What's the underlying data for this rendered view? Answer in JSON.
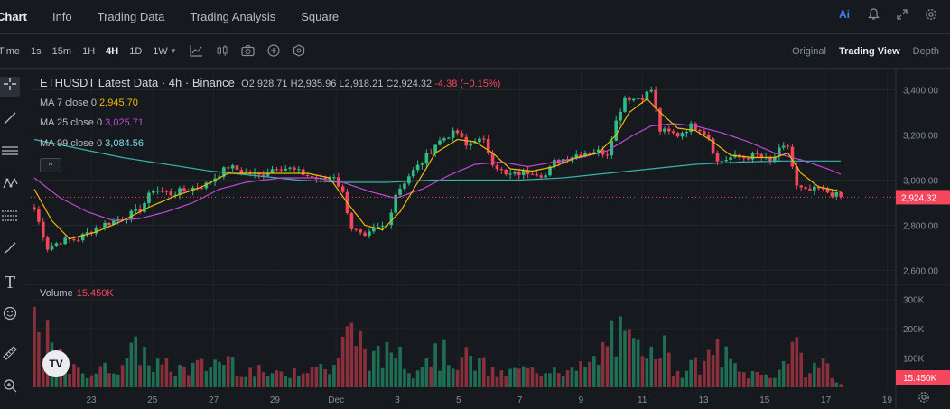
{
  "nav": {
    "tabs": [
      "Chart",
      "Info",
      "Trading Data",
      "Trading Analysis",
      "Square"
    ],
    "active_tab": "Chart",
    "icons": [
      "ai-icon",
      "bell-icon",
      "expand-icon",
      "settings-icon"
    ],
    "ai_label": "Ai"
  },
  "toolbar": {
    "time_label": "Time",
    "intervals": [
      "1s",
      "15m",
      "1H",
      "4H",
      "1D",
      "1W"
    ],
    "active_interval": "4H",
    "tool_icons": [
      "chevron-down-icon",
      "indicator-icon",
      "candle-type-icon",
      "camera-icon",
      "plus-circle-icon",
      "template-icon"
    ],
    "views": [
      "Original",
      "Trading View",
      "Depth"
    ],
    "active_view": "Trading View"
  },
  "left_tools": [
    "crosshair-icon",
    "trendline-icon",
    "horizontal-lines-icon",
    "pattern-icon",
    "fib-icon",
    "brush-icon",
    "text-icon",
    "emoji-icon",
    "ruler-icon",
    "zoom-icon"
  ],
  "legend": {
    "title": "ETHUSDT Latest Data · 4h · Binance",
    "open": "O2,928.71",
    "high": "H2,935.96",
    "low": "L2,918.21",
    "close": "C2,924.32",
    "change": "-4.38 (−0.15%)",
    "ma7_label": "MA 7 close 0",
    "ma7_value": "2,945.70",
    "ma25_label": "MA 25 close 0",
    "ma25_value": "3,025.71",
    "ma99_label": "MA 99 close 0",
    "ma99_value": "3,084.56",
    "collapse": "^"
  },
  "volume": {
    "label": "Volume",
    "value": "15.450K"
  },
  "tv_logo": "TV",
  "colors": {
    "up": "#2ebd85",
    "down": "#f6465d",
    "ma7": "#f0b90b",
    "ma25": "#c048d8",
    "ma99": "#38b2ac",
    "price_tag": "#f6465d"
  },
  "chart_data": {
    "type": "candlestick",
    "price_axis": {
      "ticks": [
        "3,400.00",
        "3,200.00",
        "3,000.00",
        "2,800.00",
        "2,600.00"
      ],
      "range": [
        2550,
        3450
      ]
    },
    "current_price": "2,924.32",
    "volume_axis": {
      "ticks": [
        "300K",
        "200K",
        "100K"
      ],
      "current": "15.450K"
    },
    "x_ticks": [
      "23",
      "25",
      "27",
      "29",
      "Dec",
      "3",
      "5",
      "7",
      "9",
      "11",
      "13",
      "15",
      "17",
      "19"
    ],
    "x_tick_dates": [
      "Nov 23",
      "Nov 25",
      "Nov 27",
      "Nov 29",
      "Dec 1",
      "Dec 3",
      "Dec 5",
      "Dec 7",
      "Dec 9",
      "Dec 11",
      "Dec 13",
      "Dec 15",
      "Dec 17",
      "Dec 19"
    ],
    "series_anchors": {
      "close": [
        [
          0,
          2870
        ],
        [
          3,
          2700
        ],
        [
          6,
          2730
        ],
        [
          10,
          2740
        ],
        [
          14,
          2790
        ],
        [
          18,
          2820
        ],
        [
          21,
          2840
        ],
        [
          24,
          2870
        ],
        [
          27,
          2960
        ],
        [
          31,
          2940
        ],
        [
          35,
          2960
        ],
        [
          39,
          2980
        ],
        [
          44,
          3060
        ],
        [
          47,
          3040
        ],
        [
          51,
          3020
        ],
        [
          55,
          3060
        ],
        [
          58,
          3050
        ],
        [
          62,
          3020
        ],
        [
          65,
          3000
        ],
        [
          68,
          3020
        ],
        [
          70,
          2940
        ],
        [
          72,
          2790
        ],
        [
          75,
          2740
        ],
        [
          77,
          2780
        ],
        [
          80,
          2800
        ],
        [
          82,
          2940
        ],
        [
          85,
          3020
        ],
        [
          88,
          3080
        ],
        [
          91,
          3160
        ],
        [
          94,
          3200
        ],
        [
          96,
          3210
        ],
        [
          98,
          3150
        ],
        [
          100,
          3180
        ],
        [
          102,
          3170
        ],
        [
          104,
          3080
        ],
        [
          107,
          3020
        ],
        [
          110,
          3030
        ],
        [
          113,
          3040
        ],
        [
          116,
          3020
        ],
        [
          118,
          3080
        ],
        [
          121,
          3100
        ],
        [
          124,
          3120
        ],
        [
          127,
          3130
        ],
        [
          130,
          3120
        ],
        [
          132,
          3260
        ],
        [
          134,
          3370
        ],
        [
          136,
          3360
        ],
        [
          138,
          3370
        ],
        [
          140,
          3400
        ],
        [
          142,
          3220
        ],
        [
          144,
          3210
        ],
        [
          146,
          3200
        ],
        [
          149,
          3240
        ],
        [
          151,
          3230
        ],
        [
          153,
          3190
        ],
        [
          155,
          3080
        ],
        [
          158,
          3100
        ],
        [
          161,
          3100
        ],
        [
          164,
          3110
        ],
        [
          167,
          3080
        ],
        [
          169,
          3130
        ],
        [
          171,
          3150
        ],
        [
          173,
          2970
        ],
        [
          175,
          2950
        ],
        [
          178,
          2960
        ],
        [
          181,
          2940
        ],
        [
          183,
          2924
        ]
      ],
      "volume_k": [
        [
          0,
          220
        ],
        [
          2,
          180
        ],
        [
          4,
          130
        ],
        [
          7,
          70
        ],
        [
          10,
          50
        ],
        [
          16,
          60
        ],
        [
          20,
          90
        ],
        [
          24,
          130
        ],
        [
          27,
          80
        ],
        [
          32,
          60
        ],
        [
          38,
          70
        ],
        [
          44,
          100
        ],
        [
          48,
          60
        ],
        [
          55,
          40
        ],
        [
          62,
          80
        ],
        [
          67,
          60
        ],
        [
          69,
          100
        ],
        [
          71,
          170
        ],
        [
          73,
          180
        ],
        [
          76,
          110
        ],
        [
          79,
          90
        ],
        [
          82,
          150
        ],
        [
          86,
          60
        ],
        [
          89,
          110
        ],
        [
          92,
          110
        ],
        [
          96,
          100
        ],
        [
          100,
          90
        ],
        [
          103,
          60
        ],
        [
          106,
          40
        ],
        [
          110,
          60
        ],
        [
          114,
          50
        ],
        [
          118,
          80
        ],
        [
          122,
          50
        ],
        [
          128,
          90
        ],
        [
          131,
          190
        ],
        [
          134,
          150
        ],
        [
          138,
          110
        ],
        [
          140,
          220
        ],
        [
          142,
          160
        ],
        [
          145,
          60
        ],
        [
          150,
          70
        ],
        [
          153,
          90
        ],
        [
          155,
          130
        ],
        [
          160,
          50
        ],
        [
          167,
          40
        ],
        [
          170,
          80
        ],
        [
          172,
          160
        ],
        [
          174,
          80
        ],
        [
          176,
          50
        ],
        [
          179,
          100
        ],
        [
          181,
          30
        ],
        [
          183,
          15
        ]
      ],
      "ma7": [
        [
          0,
          2960
        ],
        [
          4,
          2820
        ],
        [
          8,
          2740
        ],
        [
          14,
          2770
        ],
        [
          20,
          2820
        ],
        [
          26,
          2880
        ],
        [
          32,
          2930
        ],
        [
          38,
          2970
        ],
        [
          44,
          3030
        ],
        [
          50,
          3030
        ],
        [
          56,
          3030
        ],
        [
          62,
          3030
        ],
        [
          67,
          3010
        ],
        [
          71,
          2900
        ],
        [
          75,
          2800
        ],
        [
          79,
          2780
        ],
        [
          83,
          2860
        ],
        [
          87,
          2990
        ],
        [
          91,
          3120
        ],
        [
          96,
          3180
        ],
        [
          100,
          3170
        ],
        [
          104,
          3120
        ],
        [
          108,
          3050
        ],
        [
          113,
          3040
        ],
        [
          118,
          3060
        ],
        [
          123,
          3100
        ],
        [
          128,
          3120
        ],
        [
          132,
          3200
        ],
        [
          135,
          3300
        ],
        [
          139,
          3360
        ],
        [
          142,
          3300
        ],
        [
          146,
          3230
        ],
        [
          150,
          3220
        ],
        [
          154,
          3170
        ],
        [
          158,
          3110
        ],
        [
          163,
          3100
        ],
        [
          168,
          3100
        ],
        [
          171,
          3120
        ],
        [
          174,
          3030
        ],
        [
          178,
          2970
        ],
        [
          183,
          2950
        ]
      ],
      "ma25": [
        [
          0,
          3010
        ],
        [
          6,
          2920
        ],
        [
          12,
          2860
        ],
        [
          18,
          2820
        ],
        [
          24,
          2830
        ],
        [
          30,
          2860
        ],
        [
          36,
          2900
        ],
        [
          42,
          2960
        ],
        [
          48,
          2990
        ],
        [
          56,
          3010
        ],
        [
          64,
          3010
        ],
        [
          70,
          2990
        ],
        [
          76,
          2950
        ],
        [
          82,
          2920
        ],
        [
          88,
          2960
        ],
        [
          94,
          3020
        ],
        [
          100,
          3070
        ],
        [
          106,
          3080
        ],
        [
          112,
          3060
        ],
        [
          118,
          3080
        ],
        [
          124,
          3100
        ],
        [
          130,
          3130
        ],
        [
          136,
          3200
        ],
        [
          140,
          3240
        ],
        [
          145,
          3250
        ],
        [
          150,
          3240
        ],
        [
          156,
          3210
        ],
        [
          162,
          3170
        ],
        [
          168,
          3120
        ],
        [
          174,
          3090
        ],
        [
          180,
          3050
        ],
        [
          183,
          3026
        ]
      ],
      "ma99": [
        [
          0,
          3180
        ],
        [
          10,
          3140
        ],
        [
          20,
          3100
        ],
        [
          30,
          3070
        ],
        [
          40,
          3040
        ],
        [
          50,
          3020
        ],
        [
          60,
          3000
        ],
        [
          70,
          2990
        ],
        [
          80,
          2990
        ],
        [
          90,
          3000
        ],
        [
          100,
          3000
        ],
        [
          110,
          3000
        ],
        [
          120,
          3010
        ],
        [
          130,
          3030
        ],
        [
          140,
          3050
        ],
        [
          150,
          3070
        ],
        [
          160,
          3080
        ],
        [
          170,
          3085
        ],
        [
          183,
          3085
        ]
      ]
    }
  }
}
